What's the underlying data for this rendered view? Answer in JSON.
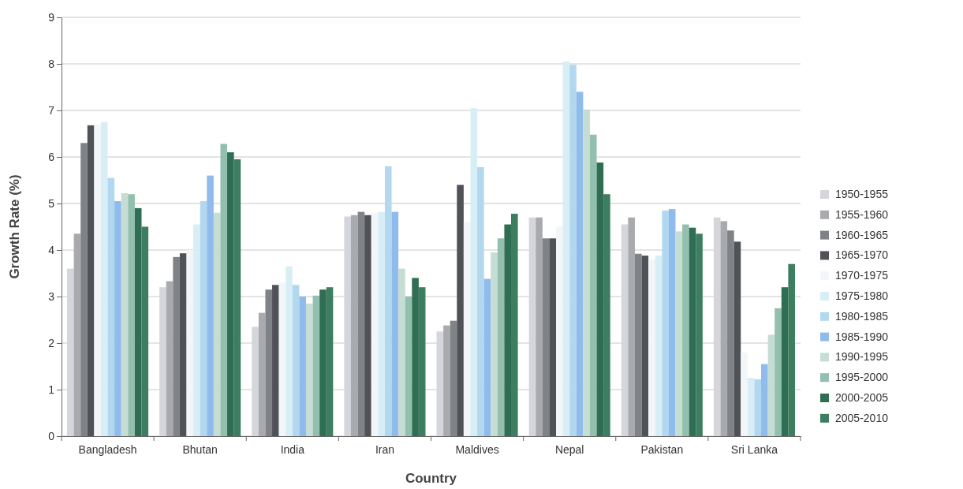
{
  "chart_data": {
    "type": "bar",
    "xlabel": "Country",
    "ylabel": "Growth Rate (%)",
    "categories": [
      "Bangladesh",
      "Bhutan",
      "India",
      "Iran",
      "Maldives",
      "Nepal",
      "Pakistan",
      "Sri Lanka"
    ],
    "ylim": [
      0,
      9
    ],
    "yticks": [
      0,
      1,
      2,
      3,
      4,
      5,
      6,
      7,
      8,
      9
    ],
    "grid": "y",
    "legend": "right",
    "series": [
      {
        "name": "1950-1955",
        "color": "#d4d6dc",
        "values": [
          3.6,
          3.2,
          2.35,
          4.72,
          2.25,
          4.7,
          4.55,
          4.7
        ]
      },
      {
        "name": "1955-1960",
        "color": "#a8aaae",
        "values": [
          4.35,
          3.33,
          2.65,
          4.75,
          2.38,
          4.7,
          4.7,
          4.62
        ]
      },
      {
        "name": "1960-1965",
        "color": "#7f8286",
        "values": [
          6.3,
          3.85,
          3.15,
          4.82,
          2.48,
          4.25,
          3.92,
          4.42
        ]
      },
      {
        "name": "1965-1970",
        "color": "#4f5358",
        "values": [
          6.68,
          3.93,
          3.25,
          4.75,
          5.4,
          4.25,
          3.88,
          4.18
        ]
      },
      {
        "name": "1970-1975",
        "color": "#f2f6f8",
        "values": [
          6.7,
          4.0,
          3.3,
          4.8,
          4.6,
          4.5,
          3.8,
          1.8
        ]
      },
      {
        "name": "1975-1980",
        "color": "#d8eef6",
        "values": [
          6.75,
          4.55,
          3.65,
          4.82,
          7.05,
          8.05,
          3.88,
          1.25
        ]
      },
      {
        "name": "1980-1985",
        "color": "#b2d8ef",
        "values": [
          5.55,
          5.05,
          3.25,
          5.8,
          5.78,
          7.98,
          4.85,
          1.22
        ]
      },
      {
        "name": "1985-1990",
        "color": "#8fbcec",
        "values": [
          5.05,
          5.6,
          3.0,
          4.82,
          3.38,
          7.4,
          4.88,
          1.55
        ]
      },
      {
        "name": "1990-1995",
        "color": "#c6ddd4",
        "values": [
          5.22,
          4.8,
          2.85,
          3.6,
          3.95,
          7.02,
          4.4,
          2.18
        ]
      },
      {
        "name": "1995-2000",
        "color": "#93bfae",
        "values": [
          5.2,
          6.28,
          3.02,
          3.0,
          4.25,
          6.48,
          4.55,
          2.75
        ]
      },
      {
        "name": "2000-2005",
        "color": "#2f6e52",
        "values": [
          4.9,
          6.1,
          3.15,
          3.4,
          4.55,
          5.88,
          4.48,
          3.2
        ]
      },
      {
        "name": "2005-2010",
        "color": "#3d7e60",
        "values": [
          4.5,
          5.95,
          3.2,
          3.2,
          4.78,
          5.2,
          4.35,
          3.7
        ]
      }
    ]
  }
}
